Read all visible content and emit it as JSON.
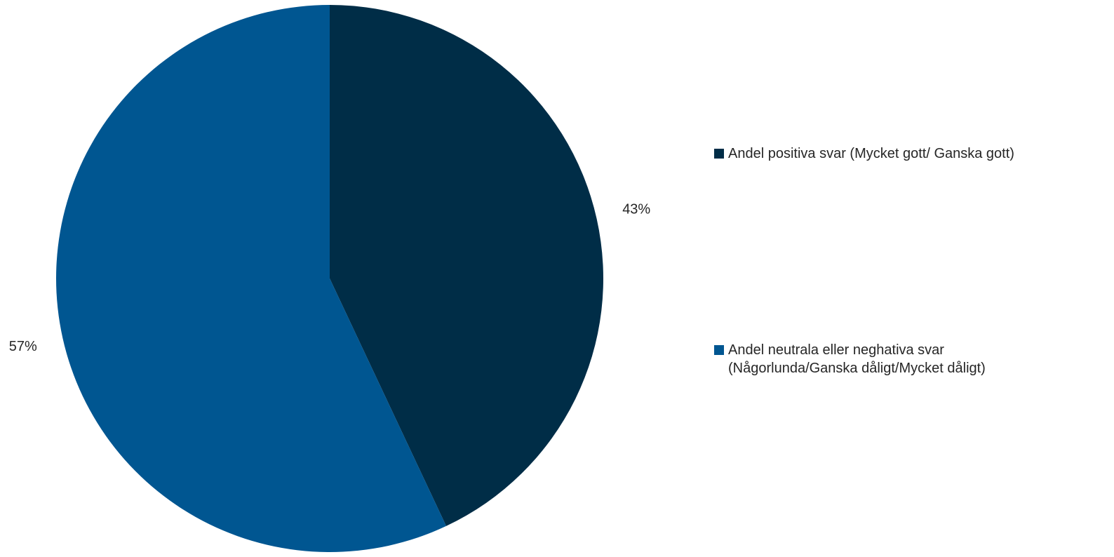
{
  "chart_data": {
    "type": "pie",
    "slices": [
      {
        "name": "Andel positiva svar (Mycket gott/ Ganska gott)",
        "value": 43,
        "label": "43%",
        "color": "#002d47"
      },
      {
        "name": "Andel neutrala eller neghativa svar\n(Någorlunda/Ganska dåligt/Mycket dåligt)",
        "value": 57,
        "label": "57%",
        "color": "#005691"
      }
    ],
    "legend_position": "right",
    "start_angle": "12 o'clock",
    "direction": "clockwise"
  }
}
